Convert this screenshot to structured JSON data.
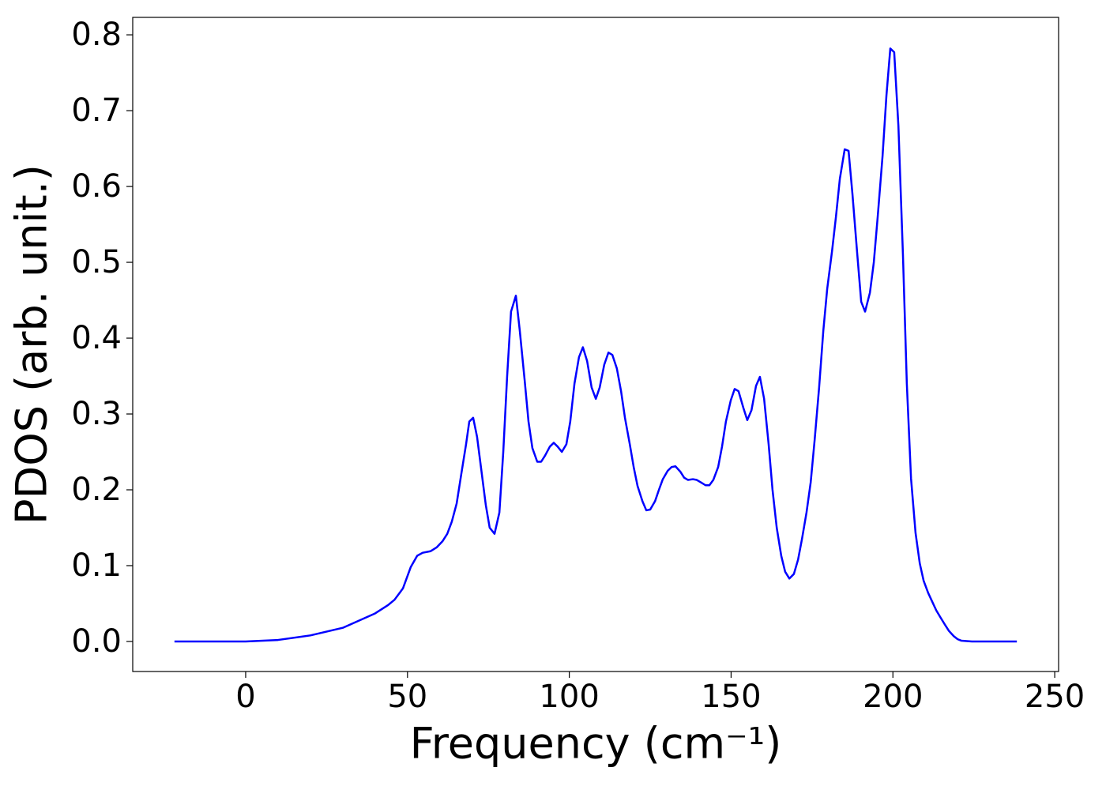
{
  "chart_data": {
    "type": "line",
    "xlabel": "Frequency (cm⁻¹)",
    "ylabel": "PDOS (arb. unit.)",
    "color": "#0000ff",
    "x": [
      -22,
      0,
      10,
      20,
      30,
      40,
      44,
      46,
      48.6,
      51,
      53,
      54.7,
      57.1,
      59,
      60.8,
      62.3,
      63.7,
      65.2,
      66.6,
      68.1,
      69.1,
      70.3,
      71.5,
      73,
      74.2,
      75.4,
      76.9,
      78.4,
      79.6,
      80.8,
      82,
      83.5,
      84.7,
      86.2,
      87.4,
      88.6,
      90.1,
      91.3,
      92.5,
      94,
      95.2,
      96.4,
      97.7,
      99.1,
      100.3,
      101.6,
      103,
      104.2,
      105.5,
      106.9,
      108.2,
      109.4,
      110.8,
      112.1,
      113.3,
      114.7,
      116,
      117.2,
      118.7,
      119.9,
      121.1,
      122.6,
      123.8,
      125,
      126.5,
      127.7,
      128.9,
      130.4,
      131.6,
      132.8,
      134.3,
      135.5,
      136.7,
      138.2,
      139.4,
      140.6,
      142.1,
      143.3,
      144.5,
      146,
      147.2,
      148.4,
      149.9,
      151.1,
      152.3,
      153.8,
      155,
      156.3,
      157.7,
      158.9,
      160.2,
      161.6,
      162.8,
      164.1,
      165.5,
      166.7,
      168,
      169.4,
      170.7,
      171.9,
      173.3,
      174.6,
      175.8,
      177.2,
      178.5,
      179.7,
      181.2,
      182.4,
      183.6,
      185.1,
      186.3,
      187.5,
      189,
      190.2,
      191.4,
      192.9,
      194.1,
      195.3,
      196.8,
      198,
      199.2,
      200.4,
      201.7,
      203.1,
      204.3,
      205.6,
      207,
      208.3,
      209.5,
      210.9,
      212.2,
      213.4,
      214.8,
      216.1,
      217.3,
      218.8,
      220,
      221.2,
      224.4,
      238.3
    ],
    "values": [
      0,
      0,
      0.002,
      0.008,
      0.018,
      0.037,
      0.048,
      0.055,
      0.07,
      0.098,
      0.113,
      0.117,
      0.119,
      0.124,
      0.132,
      0.142,
      0.158,
      0.182,
      0.22,
      0.26,
      0.29,
      0.295,
      0.27,
      0.22,
      0.18,
      0.15,
      0.142,
      0.17,
      0.25,
      0.35,
      0.435,
      0.456,
      0.41,
      0.345,
      0.29,
      0.255,
      0.237,
      0.237,
      0.245,
      0.257,
      0.262,
      0.257,
      0.25,
      0.26,
      0.29,
      0.34,
      0.375,
      0.388,
      0.37,
      0.335,
      0.32,
      0.335,
      0.365,
      0.381,
      0.378,
      0.36,
      0.33,
      0.295,
      0.26,
      0.23,
      0.205,
      0.185,
      0.173,
      0.174,
      0.185,
      0.2,
      0.214,
      0.225,
      0.23,
      0.231,
      0.224,
      0.216,
      0.213,
      0.214,
      0.213,
      0.21,
      0.206,
      0.206,
      0.213,
      0.23,
      0.257,
      0.29,
      0.318,
      0.333,
      0.33,
      0.308,
      0.292,
      0.305,
      0.337,
      0.349,
      0.32,
      0.26,
      0.2,
      0.15,
      0.113,
      0.092,
      0.083,
      0.089,
      0.108,
      0.135,
      0.17,
      0.21,
      0.265,
      0.335,
      0.41,
      0.465,
      0.515,
      0.56,
      0.61,
      0.649,
      0.647,
      0.59,
      0.51,
      0.448,
      0.435,
      0.46,
      0.5,
      0.56,
      0.64,
      0.72,
      0.782,
      0.777,
      0.68,
      0.51,
      0.34,
      0.215,
      0.143,
      0.103,
      0.08,
      0.064,
      0.052,
      0.041,
      0.031,
      0.022,
      0.014,
      0.007,
      0.003,
      0.001,
      0,
      0
    ],
    "xlim": [
      -34.9,
      251.2
    ],
    "ylim": [
      -0.0396,
      0.823
    ],
    "xticks": [
      0,
      50,
      100,
      150,
      200,
      250
    ],
    "yticks": [
      {
        "value": 0,
        "label": "0.0"
      },
      {
        "value": 0.1,
        "label": "0.1"
      },
      {
        "value": 0.2,
        "label": "0.2"
      },
      {
        "value": 0.3,
        "label": "0.3"
      },
      {
        "value": 0.4,
        "label": "0.4"
      },
      {
        "value": 0.5,
        "label": "0.5"
      },
      {
        "value": 0.6,
        "label": "0.6"
      },
      {
        "value": 0.7,
        "label": "0.7"
      },
      {
        "value": 0.8,
        "label": "0.8"
      }
    ],
    "grid": false
  }
}
